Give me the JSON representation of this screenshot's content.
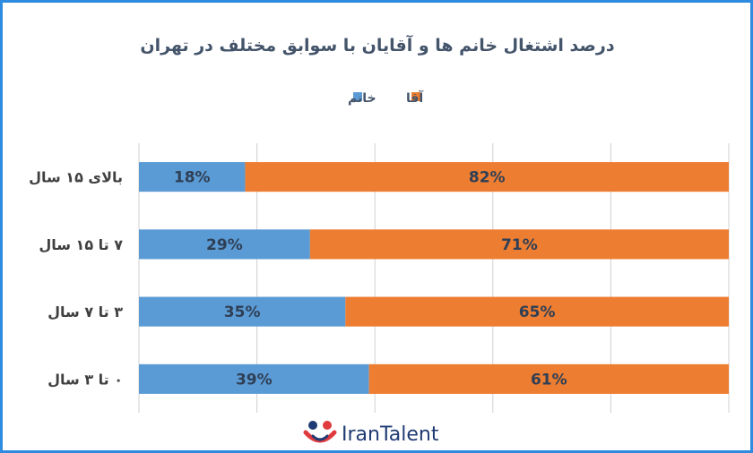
{
  "chart_data": {
    "type": "bar",
    "orientation": "horizontal",
    "stacked": "percent",
    "title": "درصد اشتغال خانم ها و آقایان با سوابق مختلف در تهران",
    "categories": [
      "بالای ۱۵ سال",
      "۷ تا ۱۵ سال",
      "۳ تا ۷ سال",
      "۰ تا ۳ سال"
    ],
    "series": [
      {
        "name": "خانم",
        "color": "#5b9bd5",
        "values": [
          18,
          29,
          35,
          39
        ],
        "labels": [
          "18%",
          "29%",
          "35%",
          "39%"
        ]
      },
      {
        "name": "آقا",
        "color": "#ed7d31",
        "values": [
          82,
          71,
          65,
          61
        ],
        "labels": [
          "82%",
          "71%",
          "65%",
          "61%"
        ]
      }
    ],
    "xlim": [
      0,
      100
    ],
    "grid": true,
    "legend_position": "top"
  },
  "watermark": {
    "text": "IranTalent",
    "icon": "irantalent-logo-icon"
  },
  "frame_color": "#2e8be0"
}
